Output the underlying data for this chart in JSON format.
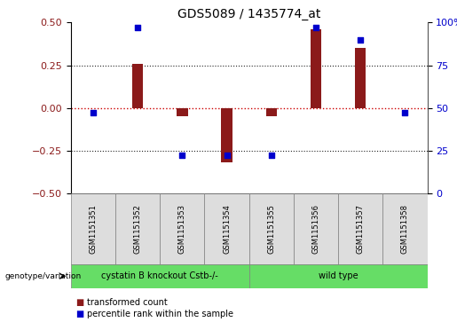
{
  "title": "GDS5089 / 1435774_at",
  "samples": [
    "GSM1151351",
    "GSM1151352",
    "GSM1151353",
    "GSM1151354",
    "GSM1151355",
    "GSM1151356",
    "GSM1151357",
    "GSM1151358"
  ],
  "transformed_count": [
    0.0,
    0.26,
    -0.05,
    -0.32,
    -0.05,
    0.46,
    0.35,
    0.0
  ],
  "percentile_rank": [
    47,
    97,
    22,
    22,
    22,
    97,
    90,
    47
  ],
  "ylim_left": [
    -0.5,
    0.5
  ],
  "ylim_right": [
    0,
    100
  ],
  "yticks_left": [
    -0.5,
    -0.25,
    0.0,
    0.25,
    0.5
  ],
  "yticks_right": [
    0,
    25,
    50,
    75,
    100
  ],
  "group1_label": "cystatin B knockout Cstb-/-",
  "group1_count": 4,
  "group2_label": "wild type",
  "group2_count": 4,
  "bar_color": "#8B1A1A",
  "dot_color": "#0000CC",
  "group_color": "#66DD66",
  "sample_box_color": "#DDDDDD",
  "hline_color": "#CC0000",
  "dotline_color": "#222222",
  "legend_bar_label": "transformed count",
  "legend_dot_label": "percentile rank within the sample",
  "genotype_label": "genotype/variation",
  "bar_width": 0.25,
  "dot_size": 20,
  "title_fontsize": 10,
  "tick_fontsize": 8,
  "sample_fontsize": 6,
  "group_fontsize": 7,
  "legend_fontsize": 7
}
